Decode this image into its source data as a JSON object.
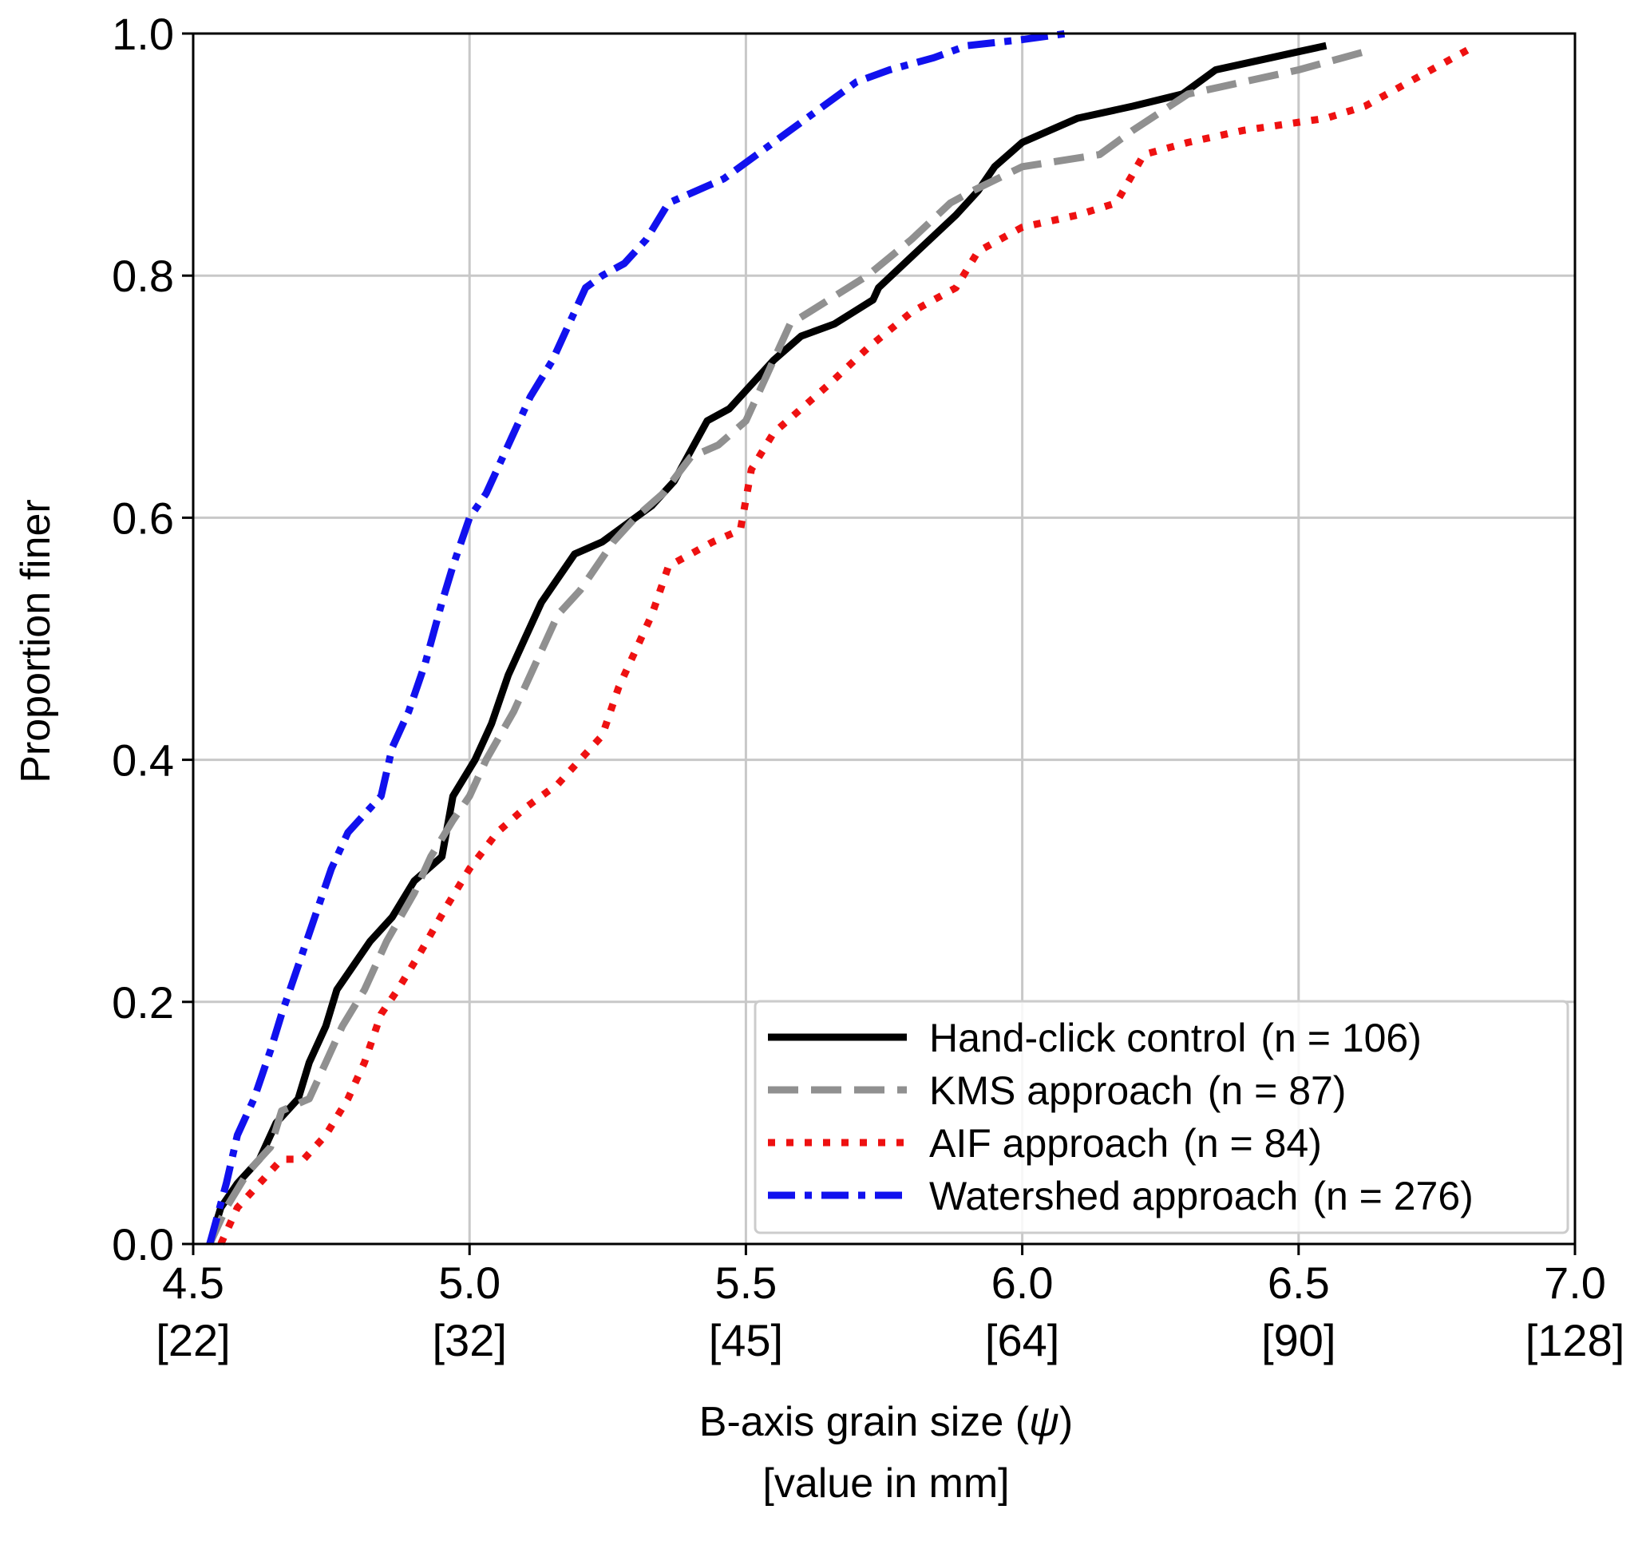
{
  "chart_data": {
    "type": "line",
    "xlabel_line1": "B-axis grain size (",
    "xlabel_symbol": "ψ",
    "xlabel_line1_end": ")",
    "xlabel_line2": "[value in mm]",
    "ylabel": "Proportion finer",
    "xlim": [
      4.5,
      7.0
    ],
    "ylim": [
      0.0,
      1.0
    ],
    "grid": true,
    "legend_placement": "lower-right",
    "xticks": [
      {
        "value": 4.5,
        "label": "4.5",
        "sublabel": "[22]"
      },
      {
        "value": 5.0,
        "label": "5.0",
        "sublabel": "[32]"
      },
      {
        "value": 5.5,
        "label": "5.5",
        "sublabel": "[45]"
      },
      {
        "value": 6.0,
        "label": "6.0",
        "sublabel": "[64]"
      },
      {
        "value": 6.5,
        "label": "6.5",
        "sublabel": "[90]"
      },
      {
        "value": 7.0,
        "label": "7.0",
        "sublabel": "[128]"
      }
    ],
    "yticks": [
      {
        "value": 0.0,
        "label": "0.0"
      },
      {
        "value": 0.2,
        "label": "0.2"
      },
      {
        "value": 0.4,
        "label": "0.4"
      },
      {
        "value": 0.6,
        "label": "0.6"
      },
      {
        "value": 0.8,
        "label": "0.8"
      },
      {
        "value": 1.0,
        "label": "1.0"
      }
    ],
    "series": [
      {
        "name": "Hand-click control",
        "n_label": "(n = 106)",
        "color": "#000000",
        "style": "solid",
        "points": [
          [
            4.53,
            0.0
          ],
          [
            4.55,
            0.03
          ],
          [
            4.58,
            0.05
          ],
          [
            4.62,
            0.07
          ],
          [
            4.65,
            0.1
          ],
          [
            4.69,
            0.12
          ],
          [
            4.71,
            0.15
          ],
          [
            4.74,
            0.18
          ],
          [
            4.76,
            0.21
          ],
          [
            4.79,
            0.23
          ],
          [
            4.82,
            0.25
          ],
          [
            4.86,
            0.27
          ],
          [
            4.9,
            0.3
          ],
          [
            4.95,
            0.32
          ],
          [
            4.97,
            0.37
          ],
          [
            5.01,
            0.4
          ],
          [
            5.04,
            0.43
          ],
          [
            5.07,
            0.47
          ],
          [
            5.1,
            0.5
          ],
          [
            5.13,
            0.53
          ],
          [
            5.16,
            0.55
          ],
          [
            5.19,
            0.57
          ],
          [
            5.24,
            0.58
          ],
          [
            5.27,
            0.59
          ],
          [
            5.33,
            0.61
          ],
          [
            5.37,
            0.63
          ],
          [
            5.43,
            0.68
          ],
          [
            5.47,
            0.69
          ],
          [
            5.51,
            0.71
          ],
          [
            5.55,
            0.73
          ],
          [
            5.6,
            0.75
          ],
          [
            5.66,
            0.76
          ],
          [
            5.73,
            0.78
          ],
          [
            5.74,
            0.79
          ],
          [
            5.81,
            0.82
          ],
          [
            5.88,
            0.85
          ],
          [
            5.92,
            0.87
          ],
          [
            5.95,
            0.89
          ],
          [
            6.0,
            0.91
          ],
          [
            6.1,
            0.93
          ],
          [
            6.2,
            0.94
          ],
          [
            6.29,
            0.95
          ],
          [
            6.32,
            0.96
          ],
          [
            6.35,
            0.97
          ],
          [
            6.45,
            0.98
          ],
          [
            6.5,
            0.985
          ],
          [
            6.55,
            0.99
          ]
        ]
      },
      {
        "name": "KMS approach",
        "n_label": "(n = 87)",
        "color": "#909090",
        "style": "dashed",
        "points": [
          [
            4.53,
            0.0
          ],
          [
            4.56,
            0.03
          ],
          [
            4.6,
            0.06
          ],
          [
            4.64,
            0.08
          ],
          [
            4.66,
            0.11
          ],
          [
            4.71,
            0.12
          ],
          [
            4.74,
            0.15
          ],
          [
            4.77,
            0.18
          ],
          [
            4.81,
            0.21
          ],
          [
            4.85,
            0.25
          ],
          [
            4.9,
            0.29
          ],
          [
            4.93,
            0.32
          ],
          [
            4.97,
            0.35
          ],
          [
            5.0,
            0.37
          ],
          [
            5.03,
            0.4
          ],
          [
            5.08,
            0.44
          ],
          [
            5.12,
            0.48
          ],
          [
            5.16,
            0.52
          ],
          [
            5.2,
            0.54
          ],
          [
            5.23,
            0.56
          ],
          [
            5.26,
            0.58
          ],
          [
            5.3,
            0.6
          ],
          [
            5.35,
            0.62
          ],
          [
            5.4,
            0.65
          ],
          [
            5.45,
            0.66
          ],
          [
            5.5,
            0.68
          ],
          [
            5.54,
            0.72
          ],
          [
            5.58,
            0.76
          ],
          [
            5.65,
            0.78
          ],
          [
            5.72,
            0.8
          ],
          [
            5.8,
            0.83
          ],
          [
            5.87,
            0.86
          ],
          [
            5.91,
            0.87
          ],
          [
            6.0,
            0.89
          ],
          [
            6.14,
            0.9
          ],
          [
            6.2,
            0.92
          ],
          [
            6.3,
            0.95
          ],
          [
            6.4,
            0.96
          ],
          [
            6.5,
            0.97
          ],
          [
            6.62,
            0.985
          ]
        ]
      },
      {
        "name": "AIF approach",
        "n_label": "(n = 84)",
        "color": "#ee1111",
        "style": "dotted",
        "points": [
          [
            4.55,
            0.0
          ],
          [
            4.58,
            0.03
          ],
          [
            4.62,
            0.05
          ],
          [
            4.66,
            0.07
          ],
          [
            4.7,
            0.07
          ],
          [
            4.74,
            0.09
          ],
          [
            4.78,
            0.12
          ],
          [
            4.81,
            0.15
          ],
          [
            4.84,
            0.19
          ],
          [
            4.87,
            0.21
          ],
          [
            4.91,
            0.24
          ],
          [
            4.96,
            0.28
          ],
          [
            5.0,
            0.31
          ],
          [
            5.05,
            0.34
          ],
          [
            5.1,
            0.36
          ],
          [
            5.16,
            0.38
          ],
          [
            5.2,
            0.4
          ],
          [
            5.24,
            0.42
          ],
          [
            5.27,
            0.46
          ],
          [
            5.3,
            0.49
          ],
          [
            5.33,
            0.52
          ],
          [
            5.36,
            0.56
          ],
          [
            5.4,
            0.57
          ],
          [
            5.44,
            0.58
          ],
          [
            5.49,
            0.59
          ],
          [
            5.51,
            0.64
          ],
          [
            5.55,
            0.67
          ],
          [
            5.6,
            0.69
          ],
          [
            5.65,
            0.71
          ],
          [
            5.72,
            0.74
          ],
          [
            5.8,
            0.77
          ],
          [
            5.88,
            0.79
          ],
          [
            5.92,
            0.82
          ],
          [
            6.0,
            0.84
          ],
          [
            6.1,
            0.85
          ],
          [
            6.17,
            0.86
          ],
          [
            6.22,
            0.9
          ],
          [
            6.3,
            0.91
          ],
          [
            6.4,
            0.92
          ],
          [
            6.55,
            0.93
          ],
          [
            6.62,
            0.94
          ],
          [
            6.7,
            0.96
          ],
          [
            6.82,
            0.99
          ]
        ]
      },
      {
        "name": "Watershed approach",
        "n_label": "(n = 276)",
        "color": "#1111ee",
        "style": "dashdot",
        "points": [
          [
            4.53,
            0.0
          ],
          [
            4.56,
            0.05
          ],
          [
            4.58,
            0.09
          ],
          [
            4.61,
            0.12
          ],
          [
            4.64,
            0.16
          ],
          [
            4.66,
            0.19
          ],
          [
            4.69,
            0.23
          ],
          [
            4.72,
            0.27
          ],
          [
            4.75,
            0.31
          ],
          [
            4.78,
            0.34
          ],
          [
            4.82,
            0.36
          ],
          [
            4.84,
            0.37
          ],
          [
            4.86,
            0.41
          ],
          [
            4.89,
            0.44
          ],
          [
            4.92,
            0.48
          ],
          [
            4.95,
            0.53
          ],
          [
            4.97,
            0.56
          ],
          [
            5.0,
            0.6
          ],
          [
            5.03,
            0.62
          ],
          [
            5.05,
            0.64
          ],
          [
            5.08,
            0.67
          ],
          [
            5.11,
            0.7
          ],
          [
            5.15,
            0.73
          ],
          [
            5.18,
            0.76
          ],
          [
            5.21,
            0.79
          ],
          [
            5.24,
            0.8
          ],
          [
            5.28,
            0.81
          ],
          [
            5.32,
            0.83
          ],
          [
            5.36,
            0.86
          ],
          [
            5.41,
            0.87
          ],
          [
            5.46,
            0.88
          ],
          [
            5.52,
            0.9
          ],
          [
            5.58,
            0.92
          ],
          [
            5.64,
            0.94
          ],
          [
            5.7,
            0.96
          ],
          [
            5.76,
            0.97
          ],
          [
            5.84,
            0.98
          ],
          [
            5.9,
            0.99
          ],
          [
            6.0,
            0.995
          ],
          [
            6.08,
            1.0
          ]
        ]
      }
    ]
  }
}
